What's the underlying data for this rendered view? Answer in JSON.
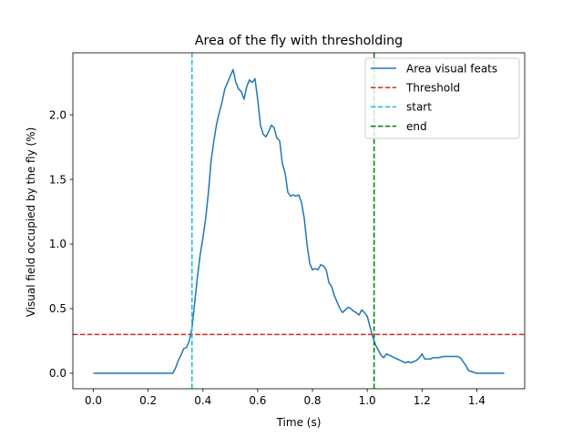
{
  "chart_data": {
    "type": "line",
    "title": "Area of the fly with thresholding",
    "xlabel": "Time (s)",
    "ylabel": "Visual field occupied by the fly (%)",
    "xlim": [
      -0.075,
      1.575
    ],
    "ylim": [
      -0.12,
      2.48
    ],
    "xticks": [
      0.0,
      0.2,
      0.4,
      0.6,
      0.8,
      1.0,
      1.2,
      1.4
    ],
    "xtick_labels": [
      "0.0",
      "0.2",
      "0.4",
      "0.6",
      "0.8",
      "1.0",
      "1.2",
      "1.4"
    ],
    "yticks": [
      0.0,
      0.5,
      1.0,
      1.5,
      2.0
    ],
    "ytick_labels": [
      "0.0",
      "0.5",
      "1.0",
      "1.5",
      "2.0"
    ],
    "grid": false,
    "legend_position": "top-right",
    "series": [
      {
        "name": "Area visual feats",
        "color": "#1f77b4",
        "style": "solid",
        "x": [
          0.0,
          0.1,
          0.2,
          0.29,
          0.3,
          0.31,
          0.32,
          0.33,
          0.34,
          0.35,
          0.36,
          0.37,
          0.38,
          0.39,
          0.4,
          0.41,
          0.42,
          0.43,
          0.44,
          0.45,
          0.46,
          0.47,
          0.48,
          0.49,
          0.5,
          0.51,
          0.52,
          0.53,
          0.54,
          0.55,
          0.56,
          0.57,
          0.58,
          0.59,
          0.6,
          0.61,
          0.62,
          0.63,
          0.64,
          0.65,
          0.66,
          0.67,
          0.68,
          0.69,
          0.7,
          0.71,
          0.72,
          0.73,
          0.74,
          0.75,
          0.76,
          0.77,
          0.78,
          0.79,
          0.8,
          0.81,
          0.82,
          0.83,
          0.84,
          0.85,
          0.86,
          0.87,
          0.88,
          0.89,
          0.9,
          0.91,
          0.92,
          0.93,
          0.94,
          0.95,
          0.96,
          0.97,
          0.98,
          0.99,
          1.0,
          1.01,
          1.02,
          1.03,
          1.04,
          1.05,
          1.06,
          1.07,
          1.08,
          1.1,
          1.12,
          1.14,
          1.15,
          1.16,
          1.18,
          1.19,
          1.2,
          1.21,
          1.22,
          1.23,
          1.24,
          1.26,
          1.28,
          1.3,
          1.32,
          1.33,
          1.34,
          1.36,
          1.37,
          1.4,
          1.45,
          1.5
        ],
        "y": [
          0.0,
          0.0,
          0.0,
          0.0,
          0.04,
          0.1,
          0.14,
          0.19,
          0.2,
          0.25,
          0.35,
          0.55,
          0.75,
          0.92,
          1.05,
          1.2,
          1.4,
          1.65,
          1.8,
          1.93,
          2.02,
          2.1,
          2.2,
          2.25,
          2.3,
          2.35,
          2.25,
          2.2,
          2.18,
          2.12,
          2.22,
          2.27,
          2.25,
          2.28,
          2.12,
          1.92,
          1.85,
          1.83,
          1.87,
          1.92,
          1.9,
          1.82,
          1.8,
          1.62,
          1.55,
          1.4,
          1.37,
          1.38,
          1.37,
          1.38,
          1.32,
          1.2,
          1.0,
          0.85,
          0.8,
          0.81,
          0.8,
          0.84,
          0.83,
          0.8,
          0.7,
          0.67,
          0.6,
          0.55,
          0.5,
          0.47,
          0.49,
          0.51,
          0.5,
          0.48,
          0.47,
          0.45,
          0.49,
          0.47,
          0.44,
          0.36,
          0.28,
          0.22,
          0.18,
          0.14,
          0.12,
          0.15,
          0.14,
          0.12,
          0.1,
          0.08,
          0.09,
          0.08,
          0.1,
          0.12,
          0.15,
          0.11,
          0.11,
          0.11,
          0.12,
          0.12,
          0.13,
          0.13,
          0.13,
          0.13,
          0.12,
          0.06,
          0.02,
          0.0,
          0.0,
          0.0
        ]
      },
      {
        "name": "Threshold",
        "color": "#d62728",
        "style": "dashed",
        "orientation": "horizontal",
        "y": 0.3
      },
      {
        "name": "start",
        "color": "#17becf",
        "style": "dashed",
        "orientation": "vertical",
        "x": 0.36
      },
      {
        "name": "end",
        "color": "#008000",
        "style": "dashed",
        "orientation": "vertical",
        "x": 1.025
      }
    ]
  }
}
